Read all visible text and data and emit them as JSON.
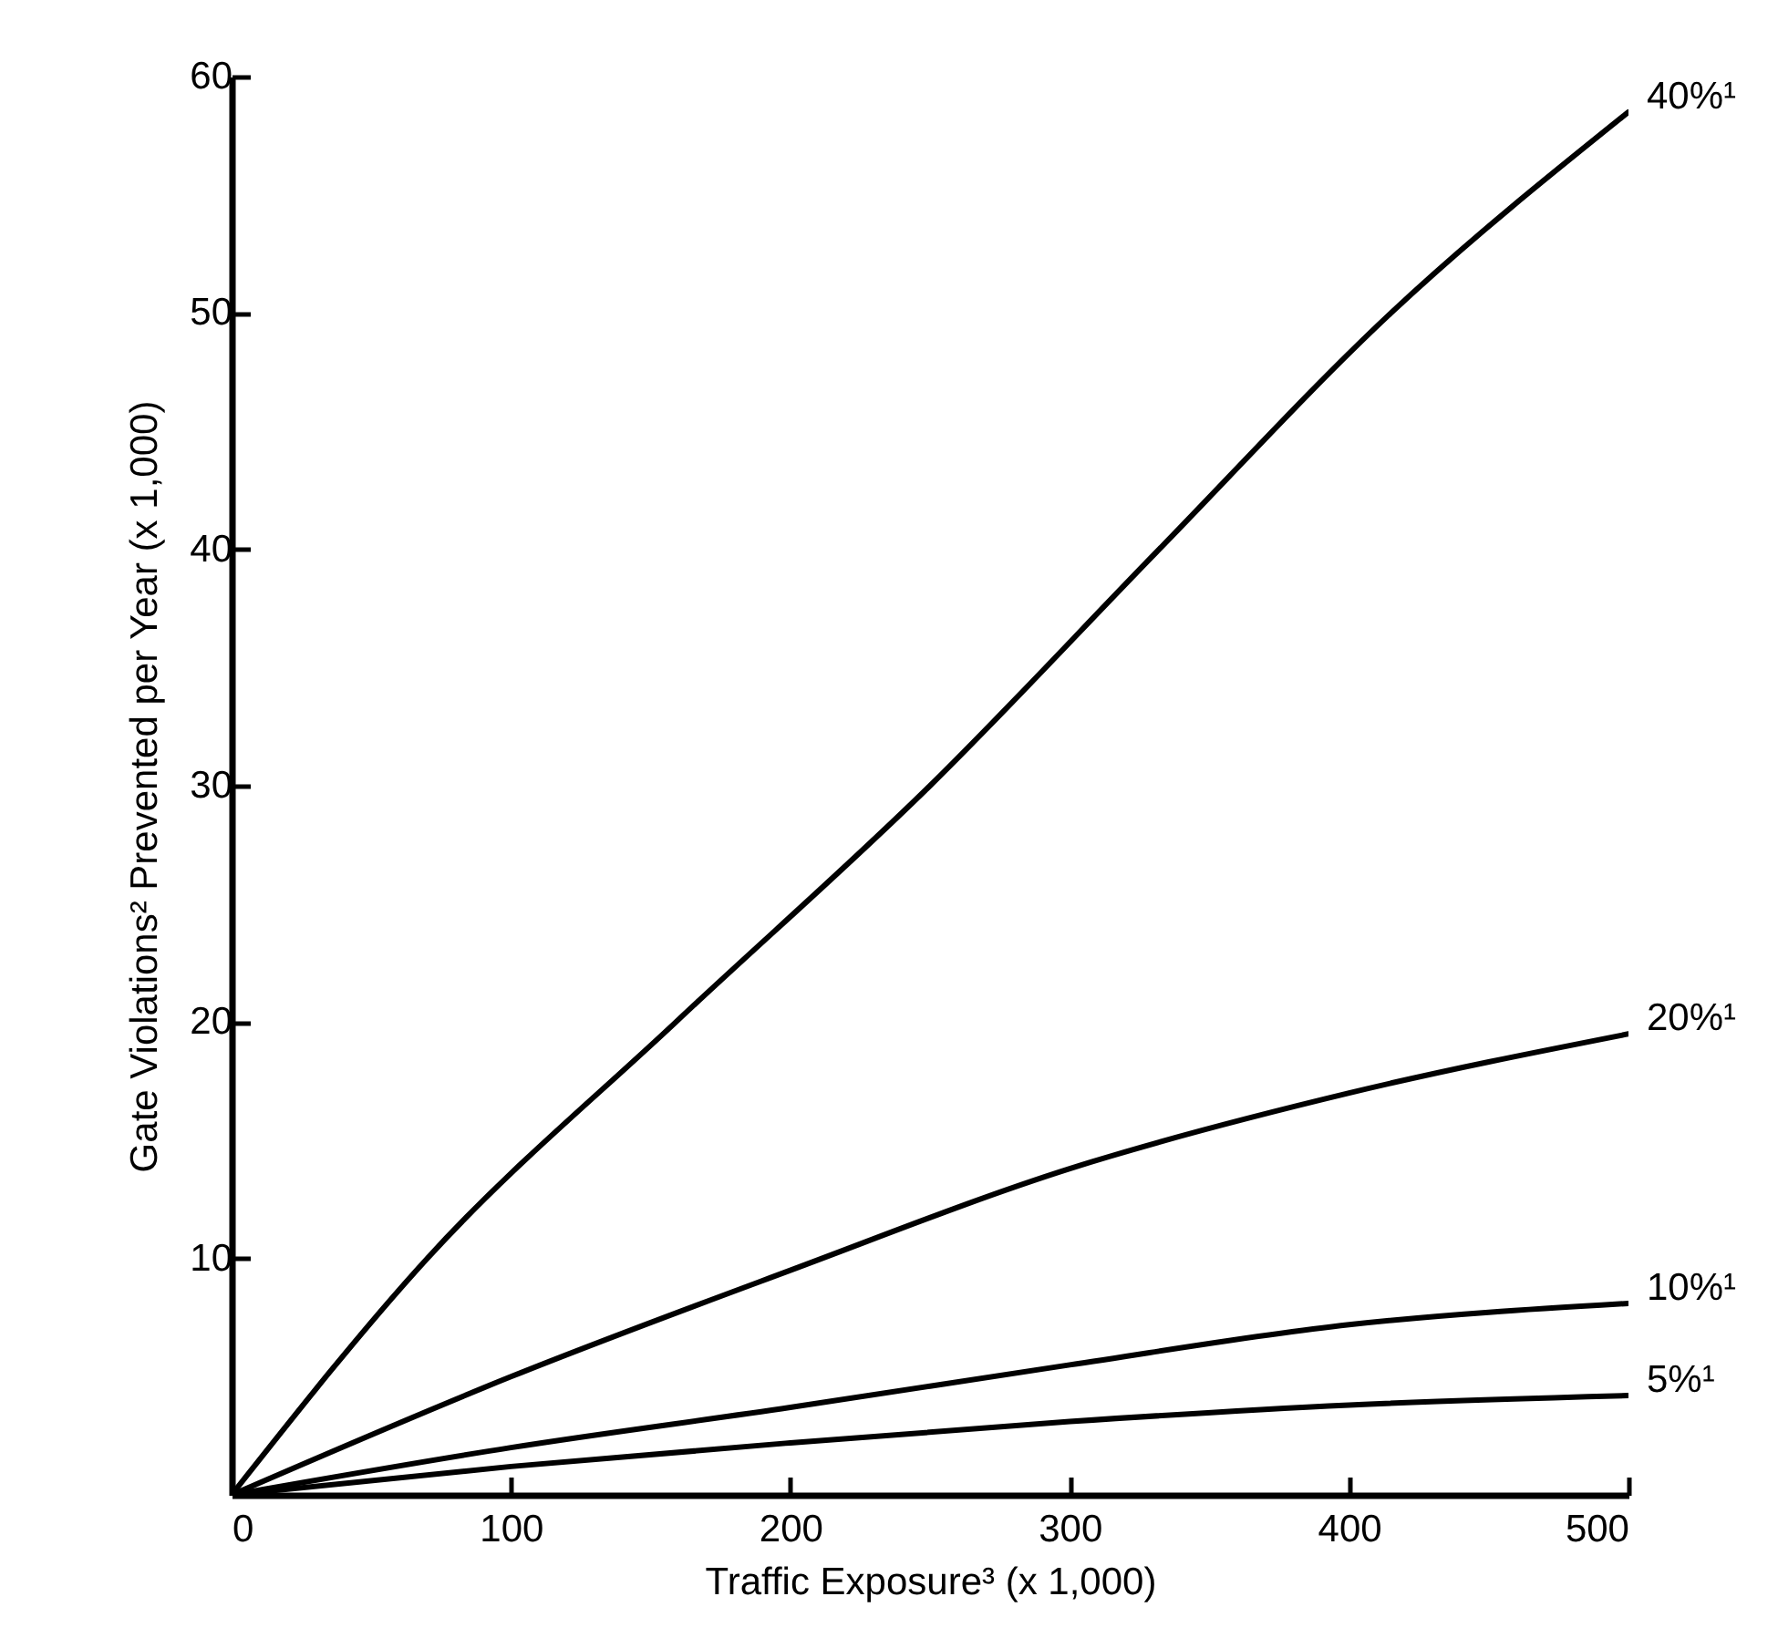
{
  "chart_data": {
    "type": "line",
    "xlabel": "Traffic Exposure³ (x 1,000)",
    "ylabel": "Gate Violations² Prevented per Year (x 1,000)",
    "xlim": [
      0,
      500
    ],
    "xticks": [
      0,
      100,
      200,
      300,
      400,
      500
    ],
    "ylim": [
      0,
      60
    ],
    "yticks": [
      10,
      20,
      30,
      40,
      50,
      60
    ],
    "grid": false,
    "legend": false,
    "line_style": "solid",
    "marker": "none",
    "series": [
      {
        "name": "40%¹",
        "color": "#000000",
        "x": [
          0,
          70,
          159,
          250,
          332,
          415,
          500
        ],
        "values": [
          0,
          10,
          20,
          30,
          40,
          50,
          58.5
        ]
      },
      {
        "name": "20%¹",
        "color": "#000000",
        "x": [
          0,
          100,
          200,
          300,
          400,
          500
        ],
        "values": [
          0,
          5,
          9.5,
          13.8,
          17,
          19.5
        ]
      },
      {
        "name": "10%¹",
        "color": "#000000",
        "x": [
          0,
          100,
          200,
          300,
          400,
          500
        ],
        "values": [
          0,
          2,
          3.7,
          5.5,
          7.2,
          8.1
        ]
      },
      {
        "name": "5%¹",
        "color": "#000000",
        "x": [
          0,
          100,
          200,
          300,
          400,
          500
        ],
        "values": [
          0,
          1.2,
          2.2,
          3.1,
          3.8,
          4.2
        ]
      }
    ]
  }
}
